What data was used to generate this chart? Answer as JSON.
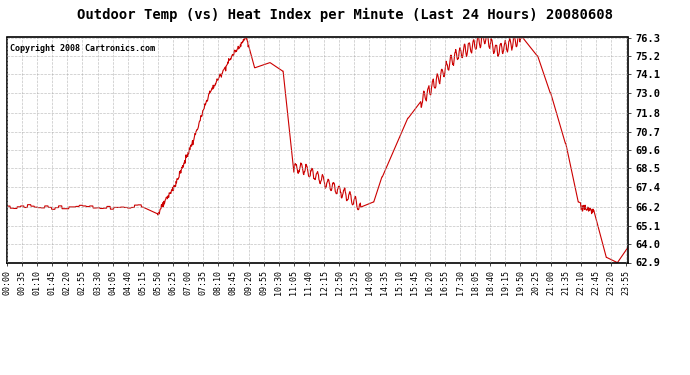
{
  "title": "Outdoor Temp (vs) Heat Index per Minute (Last 24 Hours) 20080608",
  "copyright_text": "Copyright 2008 Cartronics.com",
  "line_color": "#cc0000",
  "background_color": "#ffffff",
  "grid_color": "#aaaaaa",
  "yticks": [
    62.9,
    64.0,
    65.1,
    66.2,
    67.4,
    68.5,
    69.6,
    70.7,
    71.8,
    73.0,
    74.1,
    75.2,
    76.3
  ],
  "xtick_labels": [
    "00:00",
    "00:35",
    "01:10",
    "01:45",
    "02:20",
    "02:55",
    "03:30",
    "04:05",
    "04:40",
    "05:15",
    "05:50",
    "06:25",
    "07:00",
    "07:35",
    "08:10",
    "08:45",
    "09:20",
    "09:55",
    "10:30",
    "11:05",
    "11:40",
    "12:15",
    "12:50",
    "13:25",
    "14:00",
    "14:35",
    "15:10",
    "15:45",
    "16:20",
    "16:55",
    "17:30",
    "18:05",
    "18:40",
    "19:15",
    "19:50",
    "20:25",
    "21:00",
    "21:35",
    "22:10",
    "22:45",
    "23:20",
    "23:55"
  ],
  "ymin": 62.9,
  "ymax": 76.3,
  "title_fontsize": 10,
  "tick_fontsize": 6,
  "copyright_fontsize": 6
}
